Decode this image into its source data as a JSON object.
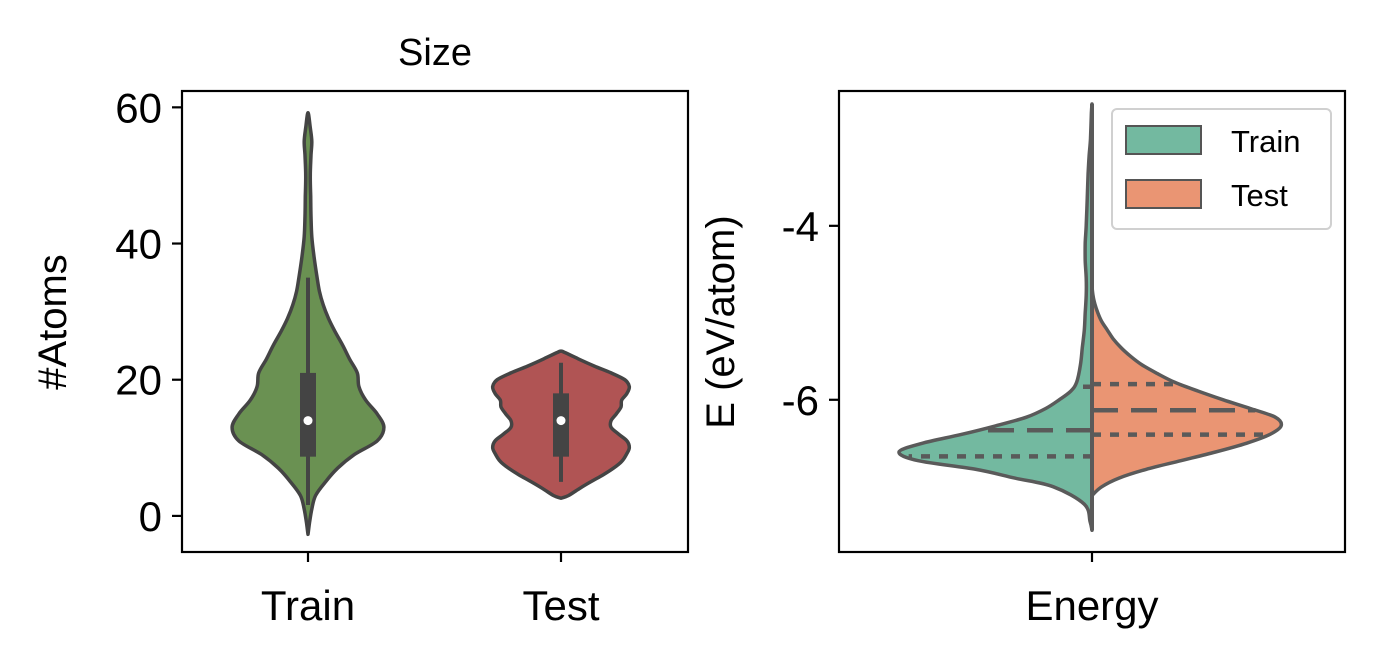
{
  "chart_data": [
    {
      "type": "violin",
      "title": "Size",
      "xlabel": "",
      "ylabel": "#Atoms",
      "ylim": [
        -5.3,
        62.4
      ],
      "yticks": [
        0,
        20,
        40,
        60
      ],
      "categories": [
        "Train",
        "Test"
      ],
      "colors": [
        "#6a9152",
        "#b05454"
      ],
      "series": [
        {
          "category": "Train",
          "min": 1.6,
          "max": 35,
          "q1": 8.7,
          "median": 14,
          "q3": 21,
          "density": [
            [
              -2.7,
              0.0
            ],
            [
              -1,
              0.02
            ],
            [
              1,
              0.05
            ],
            [
              3,
              0.1
            ],
            [
              5,
              0.23
            ],
            [
              7,
              0.39
            ],
            [
              9,
              0.61
            ],
            [
              11,
              0.91
            ],
            [
              13,
              1.0
            ],
            [
              15,
              0.91
            ],
            [
              17,
              0.76
            ],
            [
              19,
              0.67
            ],
            [
              21,
              0.65
            ],
            [
              23,
              0.55
            ],
            [
              25,
              0.46
            ],
            [
              27,
              0.36
            ],
            [
              29,
              0.27
            ],
            [
              31,
              0.2
            ],
            [
              33,
              0.15
            ],
            [
              35,
              0.12
            ],
            [
              38,
              0.08
            ],
            [
              41,
              0.05
            ],
            [
              44,
              0.04
            ],
            [
              47,
              0.035
            ],
            [
              50,
              0.03
            ],
            [
              53,
              0.04
            ],
            [
              55,
              0.05
            ],
            [
              57,
              0.03
            ],
            [
              59.2,
              0.0
            ]
          ]
        },
        {
          "category": "Test",
          "min": 5,
          "max": 22.5,
          "q1": 8.7,
          "median": 14,
          "q3": 18,
          "density": [
            [
              2.6,
              0.0
            ],
            [
              3,
              0.1
            ],
            [
              4,
              0.24
            ],
            [
              5,
              0.39
            ],
            [
              6,
              0.55
            ],
            [
              7,
              0.69
            ],
            [
              8,
              0.8
            ],
            [
              9,
              0.86
            ],
            [
              10,
              0.9
            ],
            [
              11,
              0.87
            ],
            [
              12,
              0.76
            ],
            [
              13,
              0.66
            ],
            [
              14,
              0.66
            ],
            [
              15,
              0.73
            ],
            [
              16,
              0.79
            ],
            [
              17,
              0.8
            ],
            [
              18,
              0.87
            ],
            [
              19,
              0.9
            ],
            [
              20,
              0.84
            ],
            [
              21,
              0.66
            ],
            [
              22,
              0.44
            ],
            [
              23,
              0.24
            ],
            [
              24,
              0.05
            ],
            [
              24.2,
              0.0
            ]
          ]
        }
      ]
    },
    {
      "type": "split-violin",
      "title": "",
      "xlabel": "",
      "ylabel": "E (eV/atom)",
      "ylim": [
        -7.75,
        -2.45
      ],
      "yticks": [
        -4,
        -6
      ],
      "categories": [
        "Energy"
      ],
      "legend": {
        "position": "top-right",
        "entries": [
          {
            "label": "Train",
            "color": "#73b9a0"
          },
          {
            "label": "Test",
            "color": "#ea9573"
          }
        ]
      },
      "series": [
        {
          "name": "Train",
          "side": "left",
          "color": "#73b9a0",
          "quartiles": [
            -6.65,
            -6.35,
            -5.85
          ],
          "density": [
            [
              -7.5,
              0.0
            ],
            [
              -7.4,
              0.01
            ],
            [
              -7.2,
              0.04
            ],
            [
              -7.0,
              0.2
            ],
            [
              -6.9,
              0.4
            ],
            [
              -6.8,
              0.6
            ],
            [
              -6.7,
              0.9
            ],
            [
              -6.6,
              1.0
            ],
            [
              -6.5,
              0.88
            ],
            [
              -6.4,
              0.68
            ],
            [
              -6.3,
              0.5
            ],
            [
              -6.2,
              0.34
            ],
            [
              -6.1,
              0.24
            ],
            [
              -6.0,
              0.17
            ],
            [
              -5.9,
              0.11
            ],
            [
              -5.8,
              0.08
            ],
            [
              -5.6,
              0.06
            ],
            [
              -5.4,
              0.05
            ],
            [
              -5.2,
              0.04
            ],
            [
              -5.0,
              0.035
            ],
            [
              -4.8,
              0.03
            ],
            [
              -4.6,
              0.03
            ],
            [
              -4.4,
              0.035
            ],
            [
              -4.2,
              0.035
            ],
            [
              -4.0,
              0.03
            ],
            [
              -3.7,
              0.025
            ],
            [
              -3.4,
              0.02
            ],
            [
              -3.2,
              0.015
            ],
            [
              -3.0,
              0.008
            ],
            [
              -2.7,
              0.003
            ],
            [
              -2.6,
              0.0
            ]
          ]
        },
        {
          "name": "Test",
          "side": "right",
          "color": "#ea9573",
          "quartiles": [
            -6.4,
            -6.12,
            -5.82
          ],
          "density": [
            [
              -7.1,
              0.0
            ],
            [
              -7.0,
              0.05
            ],
            [
              -6.9,
              0.14
            ],
            [
              -6.8,
              0.28
            ],
            [
              -6.7,
              0.46
            ],
            [
              -6.6,
              0.64
            ],
            [
              -6.5,
              0.8
            ],
            [
              -6.4,
              0.92
            ],
            [
              -6.3,
              0.98
            ],
            [
              -6.2,
              0.95
            ],
            [
              -6.1,
              0.82
            ],
            [
              -6.0,
              0.68
            ],
            [
              -5.9,
              0.55
            ],
            [
              -5.8,
              0.43
            ],
            [
              -5.7,
              0.34
            ],
            [
              -5.6,
              0.26
            ],
            [
              -5.5,
              0.2
            ],
            [
              -5.4,
              0.15
            ],
            [
              -5.3,
              0.11
            ],
            [
              -5.2,
              0.08
            ],
            [
              -5.1,
              0.05
            ],
            [
              -5.0,
              0.03
            ],
            [
              -4.9,
              0.015
            ],
            [
              -4.8,
              0.005
            ],
            [
              -4.7,
              0.0
            ]
          ]
        }
      ]
    }
  ]
}
